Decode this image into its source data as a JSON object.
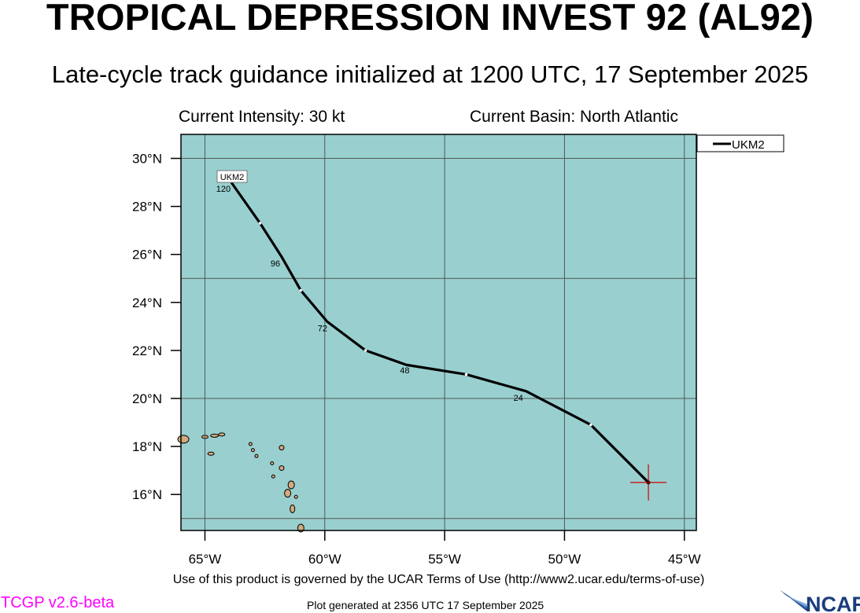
{
  "header": {
    "title": "TROPICAL DEPRESSION INVEST 92 (AL92)",
    "subtitle": "Late-cycle track guidance initialized at 1200 UTC, 17 September 2025",
    "intensity": "Current Intensity: 30 kt",
    "basin": "Current Basin: North Atlantic"
  },
  "map": {
    "ocean_color": "#99cfcf",
    "land_color": "#d2aa7d",
    "lon_range": [
      -66,
      -44.5
    ],
    "lat_range": [
      14.5,
      31
    ],
    "lon_ticks": [
      -65,
      -60,
      -55,
      -50,
      -45
    ],
    "lon_tick_labels": [
      "65°W",
      "60°W",
      "55°W",
      "50°W",
      "45°W"
    ],
    "lat_ticks": [
      16,
      18,
      20,
      22,
      24,
      26,
      28,
      30
    ],
    "lat_tick_labels": [
      "16°N",
      "18°N",
      "20°N",
      "22°N",
      "24°N",
      "26°N",
      "28°N",
      "30°N"
    ],
    "gridlines": {
      "lon": [
        -65,
        -60,
        -55,
        -50,
        -45
      ],
      "lat": [
        15,
        20,
        25,
        30
      ]
    }
  },
  "legend": {
    "position": "top-right",
    "entries": [
      "UKM2"
    ]
  },
  "storm_position": {
    "lon": -46.5,
    "lat": 16.5,
    "marker_color": "#cc0000"
  },
  "tracks": [
    {
      "name": "UKM2",
      "color": "#000000",
      "end_label": "UKM2",
      "points": [
        {
          "hour": 0,
          "lon": -46.5,
          "lat": 16.5
        },
        {
          "hour": 12,
          "lon": -48.9,
          "lat": 18.9
        },
        {
          "hour": 24,
          "lon": -51.6,
          "lat": 20.3
        },
        {
          "hour": 36,
          "lon": -54.1,
          "lat": 21.0
        },
        {
          "hour": 48,
          "lon": -56.6,
          "lat": 21.4
        },
        {
          "hour": 60,
          "lon": -58.3,
          "lat": 22.0
        },
        {
          "hour": 72,
          "lon": -59.9,
          "lat": 23.2
        },
        {
          "hour": 84,
          "lon": -61.0,
          "lat": 24.5
        },
        {
          "hour": 96,
          "lon": -61.8,
          "lat": 25.9
        },
        {
          "hour": 108,
          "lon": -62.7,
          "lat": 27.3
        },
        {
          "hour": 120,
          "lon": -63.9,
          "lat": 29.0
        }
      ],
      "hour_labels": [
        "24",
        "48",
        "72",
        "96",
        "120"
      ]
    }
  ],
  "footer": {
    "terms": "Use of this product is governed by the UCAR Terms of Use (http://www2.ucar.edu/terms-of-use)",
    "version": "TCGP v2.6-beta",
    "generated": "Plot generated at 2356 UTC   17 September 2025",
    "logo": "NCAR"
  }
}
